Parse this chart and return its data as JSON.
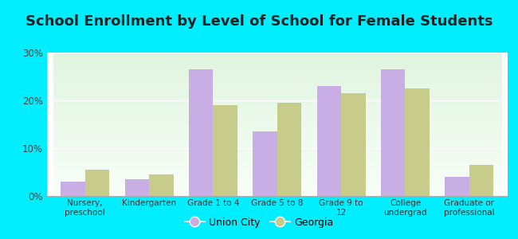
{
  "title": "School Enrollment by Level of School for Female Students",
  "categories": [
    "Nursery,\npreschool",
    "Kindergarten",
    "Grade 1 to 4",
    "Grade 5 to 8",
    "Grade 9 to\n12",
    "College\nundergrad",
    "Graduate or\nprofessional"
  ],
  "union_city": [
    3.0,
    3.5,
    26.5,
    13.5,
    23.0,
    26.5,
    4.0
  ],
  "georgia": [
    5.5,
    4.5,
    19.0,
    19.5,
    21.5,
    22.5,
    6.5
  ],
  "union_city_color": "#c9aee5",
  "georgia_color": "#c8cc8a",
  "background_outer": "#00eeff",
  "background_inner": "#edf7ec",
  "ylim": [
    0,
    30
  ],
  "yticks": [
    0,
    10,
    20,
    30
  ],
  "ytick_labels": [
    "0%",
    "10%",
    "20%",
    "30%"
  ],
  "legend_label_1": "Union City",
  "legend_label_2": "Georgia",
  "title_fontsize": 13,
  "bar_width": 0.38
}
